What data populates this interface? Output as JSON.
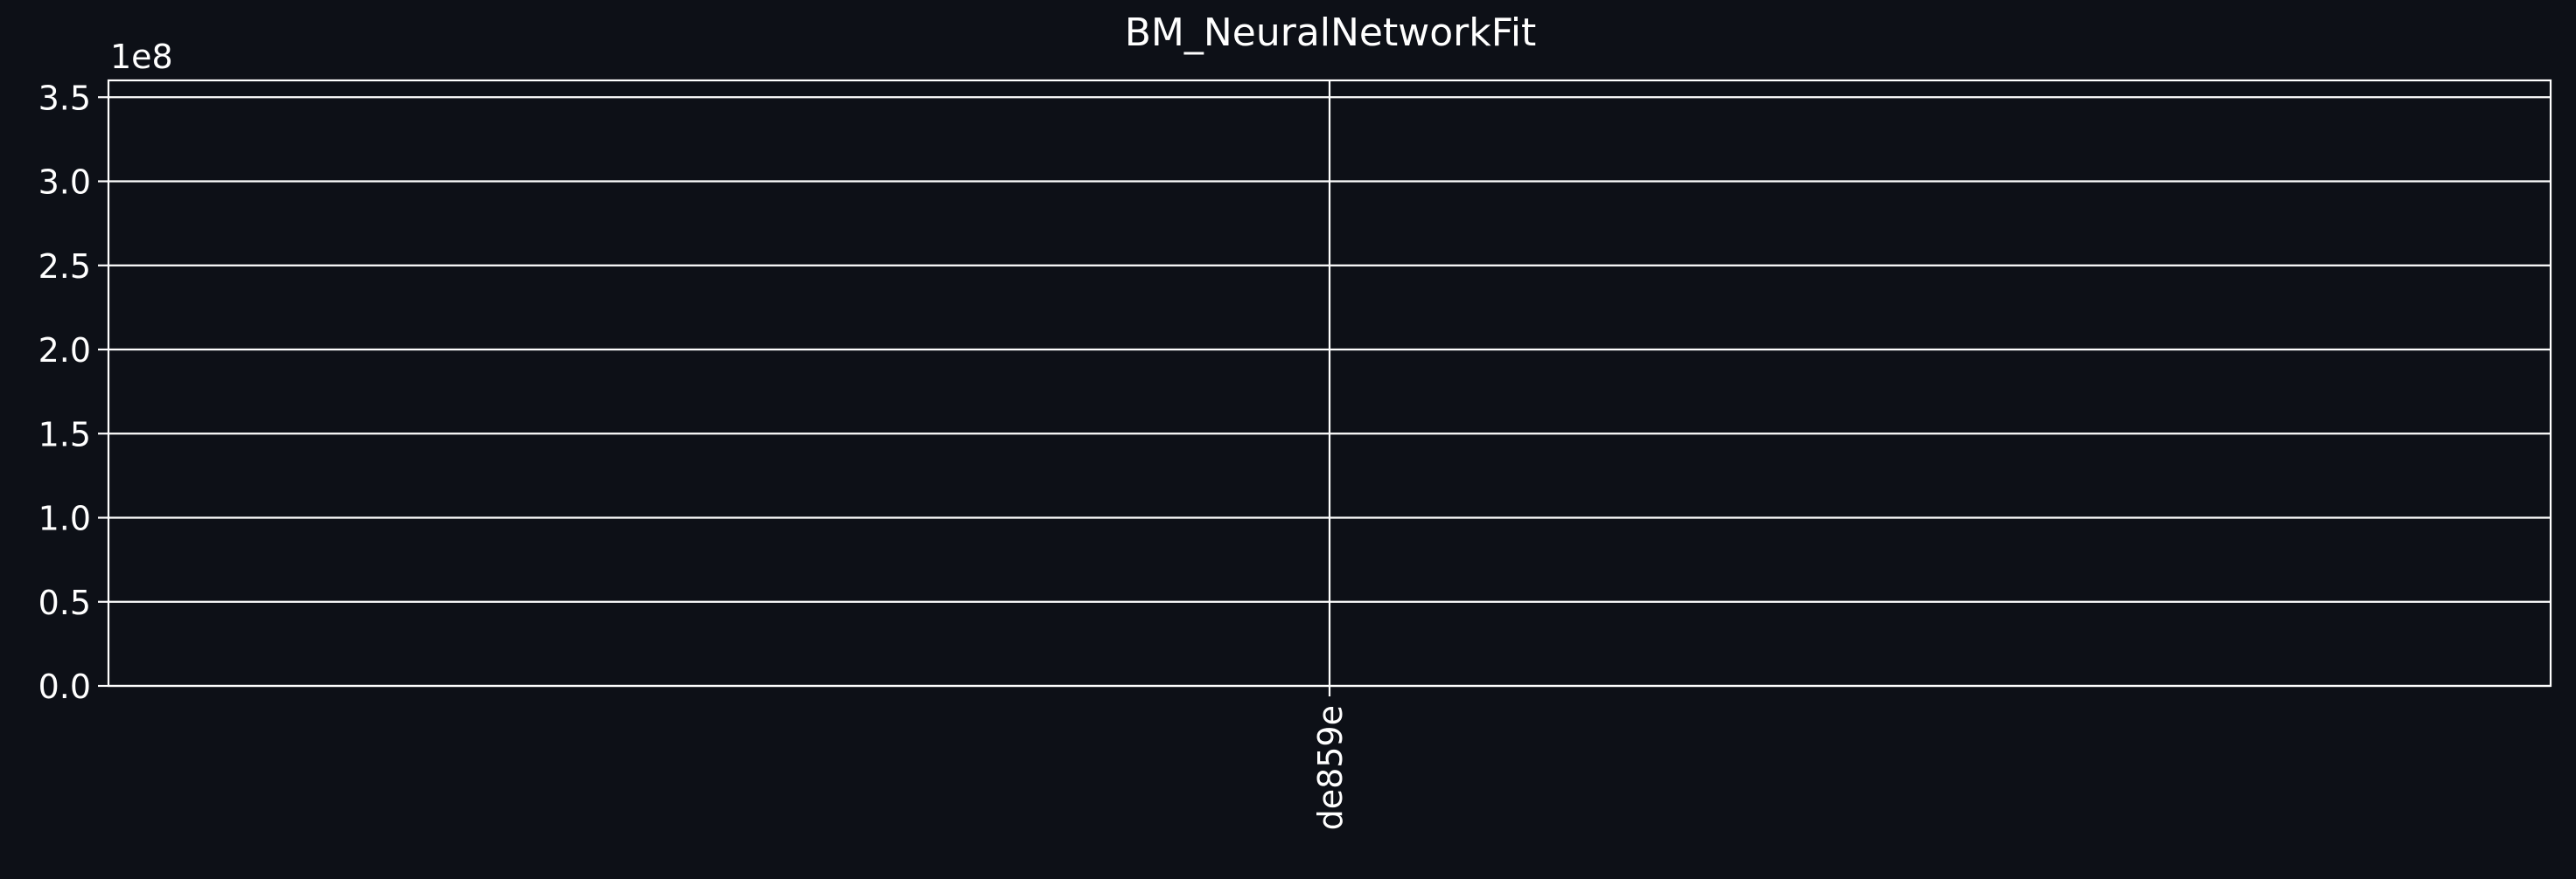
{
  "chart_data": {
    "type": "line",
    "title": "BM_NeuralNetworkFit",
    "xlabel": "",
    "ylabel": "",
    "x_categories": [
      "de859e"
    ],
    "series": [
      {
        "values": [
          null
        ]
      }
    ],
    "ylim": [
      0,
      360000000.0
    ],
    "y_ticks": [
      0.0,
      0.5,
      1.0,
      1.5,
      2.0,
      2.5,
      3.0,
      3.5
    ],
    "y_tick_labels": [
      "0.0",
      "0.5",
      "1.0",
      "1.5",
      "2.0",
      "2.5",
      "3.0",
      "3.5"
    ],
    "y_scale_label": "1e8",
    "grid": true,
    "colors": {
      "background": "#0d1017",
      "axes": "#ffffff",
      "grid": "#ffffff",
      "text": "#ffffff"
    }
  }
}
